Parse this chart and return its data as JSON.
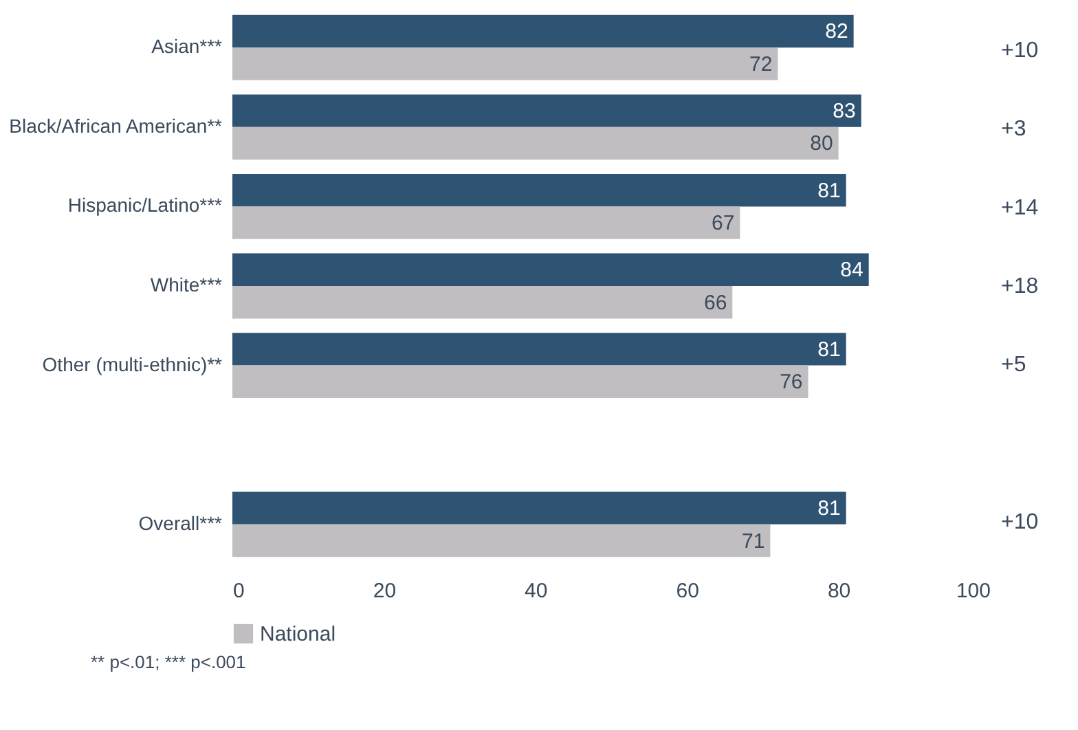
{
  "chart_data": {
    "type": "bar",
    "orientation": "horizontal",
    "categories": [
      "Asian***",
      "Black/African American**",
      "Hispanic/Latino***",
      "White***",
      "Other (multi-ethnic)**",
      null,
      "Overall***"
    ],
    "series": [
      {
        "color": "#2e5373",
        "values": [
          82,
          83,
          81,
          84,
          81,
          null,
          81
        ]
      },
      {
        "name": "National",
        "color": "#c0bec0",
        "values": [
          72,
          80,
          67,
          66,
          76,
          null,
          71
        ]
      }
    ],
    "xlim": [
      0,
      100
    ],
    "xticks": [
      0,
      20,
      40,
      60,
      80,
      100
    ],
    "grid": false,
    "legend": "bottom",
    "data_labels": true,
    "annotations": [
      "+10",
      "+3",
      "+14",
      "+18",
      "+5",
      "+10",
      "** p<.01; *** p<.001"
    ]
  }
}
